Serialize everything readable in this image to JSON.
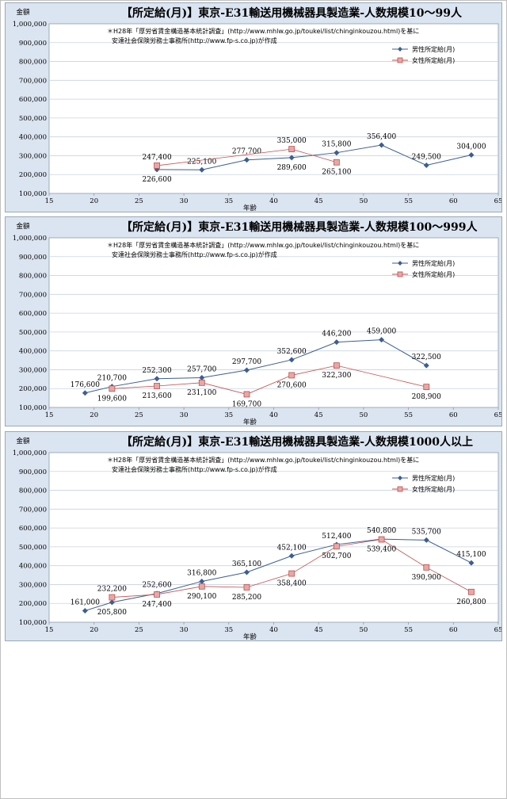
{
  "colors": {
    "male": "#3c5e92",
    "female": "#c0504d",
    "female_fill": "#e6a8a6",
    "panel_bg": "#dbe5f1",
    "plot_bg": "#ffffff",
    "grid": "#c8d3e2"
  },
  "chart_data": [
    {
      "type": "line",
      "title": "【所定給(月)】東京-E31輸送用機械器具製造業-人数規模10～99人",
      "ylabel": "金額",
      "xlabel": "年齢",
      "note": [
        "＊H28年「厚労省賃金構造基本統計調査」(http://www.mhlw.go.jp/toukei/list/chinginkouzou.html)を基に",
        "安達社会保険労務士事務所(http://www.fp-s.co.jp)が作成"
      ],
      "xlim": [
        15,
        65
      ],
      "ylim": [
        100000,
        1000000
      ],
      "x_ticks": [
        "15",
        "20",
        "25",
        "30",
        "35",
        "40",
        "45",
        "50",
        "55",
        "60",
        "65"
      ],
      "y_ticks": [
        "100,000",
        "200,000",
        "300,000",
        "400,000",
        "500,000",
        "600,000",
        "700,000",
        "800,000",
        "900,000",
        "1,000,000"
      ],
      "legend_position": "top-right",
      "series": [
        {
          "name": "男性所定給(月)",
          "points": [
            {
              "x": 27,
              "y": 226600,
              "label": "226,600"
            },
            {
              "x": 32,
              "y": 225100,
              "label": "225,100"
            },
            {
              "x": 37,
              "y": 277700,
              "label": "277,700"
            },
            {
              "x": 42,
              "y": 289600,
              "label": "289,600"
            },
            {
              "x": 47,
              "y": 315800,
              "label": "315,800"
            },
            {
              "x": 52,
              "y": 356400,
              "label": "356,400"
            },
            {
              "x": 57,
              "y": 249500,
              "label": "249,500"
            },
            {
              "x": 62,
              "y": 304000,
              "label": "304,000"
            }
          ]
        },
        {
          "name": "女性所定給(月)",
          "points": [
            {
              "x": 27,
              "y": 247400,
              "label": "247,400"
            },
            {
              "x": 42,
              "y": 335000,
              "label": "335,000"
            },
            {
              "x": 47,
              "y": 265100,
              "label": "265,100"
            }
          ]
        }
      ]
    },
    {
      "type": "line",
      "title": "【所定給(月)】東京-E31輸送用機械器具製造業-人数規模100～999人",
      "ylabel": "金額",
      "xlabel": "年齢",
      "note": [
        "＊H28年「厚労省賃金構造基本統計調査」(http://www.mhlw.go.jp/toukei/list/chinginkouzou.html)を基に",
        "安達社会保険労務士事務所(http://www.fp-s.co.jp)が作成"
      ],
      "xlim": [
        15,
        65
      ],
      "ylim": [
        100000,
        1000000
      ],
      "x_ticks": [
        "15",
        "20",
        "25",
        "30",
        "35",
        "40",
        "45",
        "50",
        "55",
        "60",
        "65"
      ],
      "y_ticks": [
        "100,000",
        "200,000",
        "300,000",
        "400,000",
        "500,000",
        "600,000",
        "700,000",
        "800,000",
        "900,000",
        "1,000,000"
      ],
      "legend_position": "top-right",
      "series": [
        {
          "name": "男性所定給(月)",
          "points": [
            {
              "x": 19,
              "y": 176600,
              "label": "176,600"
            },
            {
              "x": 22,
              "y": 210700,
              "label": "210,700"
            },
            {
              "x": 27,
              "y": 252300,
              "label": "252,300"
            },
            {
              "x": 32,
              "y": 257700,
              "label": "257,700"
            },
            {
              "x": 37,
              "y": 297700,
              "label": "297,700"
            },
            {
              "x": 42,
              "y": 352600,
              "label": "352,600"
            },
            {
              "x": 47,
              "y": 446200,
              "label": "446,200"
            },
            {
              "x": 52,
              "y": 459000,
              "label": "459,000"
            },
            {
              "x": 57,
              "y": 322500,
              "label": "322,500"
            }
          ]
        },
        {
          "name": "女性所定給(月)",
          "points": [
            {
              "x": 22,
              "y": 199600,
              "label": "199,600"
            },
            {
              "x": 27,
              "y": 213600,
              "label": "213,600"
            },
            {
              "x": 32,
              "y": 231100,
              "label": "231,100"
            },
            {
              "x": 37,
              "y": 169700,
              "label": "169,700"
            },
            {
              "x": 42,
              "y": 270600,
              "label": "270,600"
            },
            {
              "x": 47,
              "y": 322300,
              "label": "322,300"
            },
            {
              "x": 57,
              "y": 208900,
              "label": "208,900"
            }
          ]
        }
      ]
    },
    {
      "type": "line",
      "title": "【所定給(月)】東京-E31輸送用機械器具製造業-人数規模1000人以上",
      "ylabel": "金額",
      "xlabel": "年齢",
      "note": [
        "＊H28年「厚労省賃金構造基本統計調査」(http://www.mhlw.go.jp/toukei/list/chinginkouzou.html)を基に",
        "安達社会保険労務士事務所(http://www.fp-s.co.jp)が作成"
      ],
      "xlim": [
        15,
        65
      ],
      "ylim": [
        100000,
        1000000
      ],
      "x_ticks": [
        "15",
        "20",
        "25",
        "30",
        "35",
        "40",
        "45",
        "50",
        "55",
        "60",
        "65"
      ],
      "y_ticks": [
        "100,000",
        "200,000",
        "300,000",
        "400,000",
        "500,000",
        "600,000",
        "700,000",
        "800,000",
        "900,000",
        "1,000,000"
      ],
      "legend_position": "top-right",
      "series": [
        {
          "name": "男性所定給(月)",
          "points": [
            {
              "x": 19,
              "y": 161000,
              "label": "161,000"
            },
            {
              "x": 22,
              "y": 205800,
              "label": "205,800"
            },
            {
              "x": 27,
              "y": 252600,
              "label": "252,600"
            },
            {
              "x": 32,
              "y": 316800,
              "label": "316,800"
            },
            {
              "x": 37,
              "y": 365100,
              "label": "365,100"
            },
            {
              "x": 42,
              "y": 452100,
              "label": "452,100"
            },
            {
              "x": 47,
              "y": 512400,
              "label": "512,400"
            },
            {
              "x": 52,
              "y": 540800,
              "label": "540,800"
            },
            {
              "x": 57,
              "y": 535700,
              "label": "535,700"
            },
            {
              "x": 62,
              "y": 415100,
              "label": "415,100"
            }
          ]
        },
        {
          "name": "女性所定給(月)",
          "points": [
            {
              "x": 22,
              "y": 232200,
              "label": "232,200"
            },
            {
              "x": 27,
              "y": 247400,
              "label": "247,400"
            },
            {
              "x": 32,
              "y": 290100,
              "label": "290,100"
            },
            {
              "x": 37,
              "y": 285200,
              "label": "285,200"
            },
            {
              "x": 42,
              "y": 358400,
              "label": "358,400"
            },
            {
              "x": 47,
              "y": 502700,
              "label": "502,700"
            },
            {
              "x": 52,
              "y": 539400,
              "label": "539,400"
            },
            {
              "x": 57,
              "y": 390900,
              "label": "390,900"
            },
            {
              "x": 62,
              "y": 260800,
              "label": "260,800"
            }
          ]
        }
      ]
    }
  ]
}
